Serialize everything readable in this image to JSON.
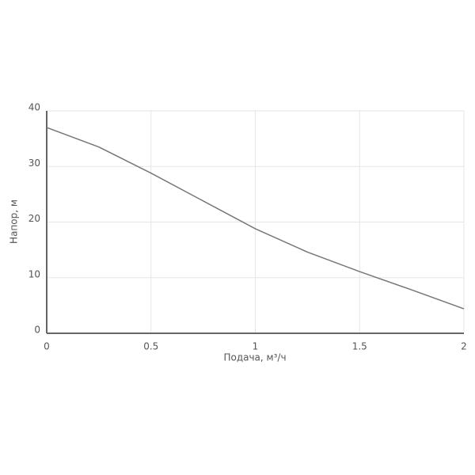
{
  "chart_data": {
    "type": "line",
    "xlabel": "Подача, м³/ч",
    "ylabel": "Напор, м",
    "x": [
      0,
      0.25,
      0.5,
      0.75,
      1,
      1.25,
      1.5,
      1.75,
      2
    ],
    "values": [
      37,
      33.5,
      28.8,
      23.8,
      18.8,
      14.6,
      11.1,
      7.8,
      4.4
    ],
    "color": "#777777",
    "xlim": [
      0,
      2
    ],
    "xticks": [
      0,
      0.5,
      1,
      1.5,
      2
    ],
    "ylim": [
      0,
      40
    ],
    "yticks": [
      0,
      10,
      20,
      30,
      40
    ],
    "grid": true
  }
}
